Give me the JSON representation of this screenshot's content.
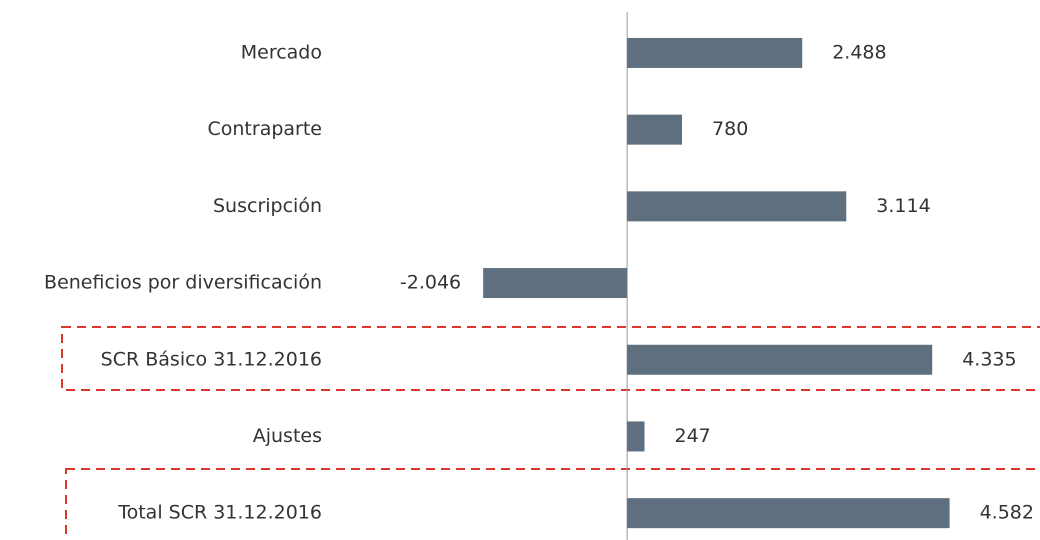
{
  "chart_data": {
    "type": "hbar",
    "categories": [
      "Mercado",
      "Contraparte",
      "Suscripción",
      "Beneficios por diversificación",
      "SCR Básico 31.12.2016",
      "Ajustes",
      "Total SCR 31.12.2016"
    ],
    "values": [
      2488,
      780,
      3114,
      -2046,
      4335,
      247,
      4582
    ],
    "value_labels": [
      "2.488",
      "780",
      "3.114",
      "-2.046",
      "4.335",
      "247",
      "4.582"
    ],
    "color": "#5e7080",
    "xlim": [
      -3000,
      5000
    ]
  }
}
